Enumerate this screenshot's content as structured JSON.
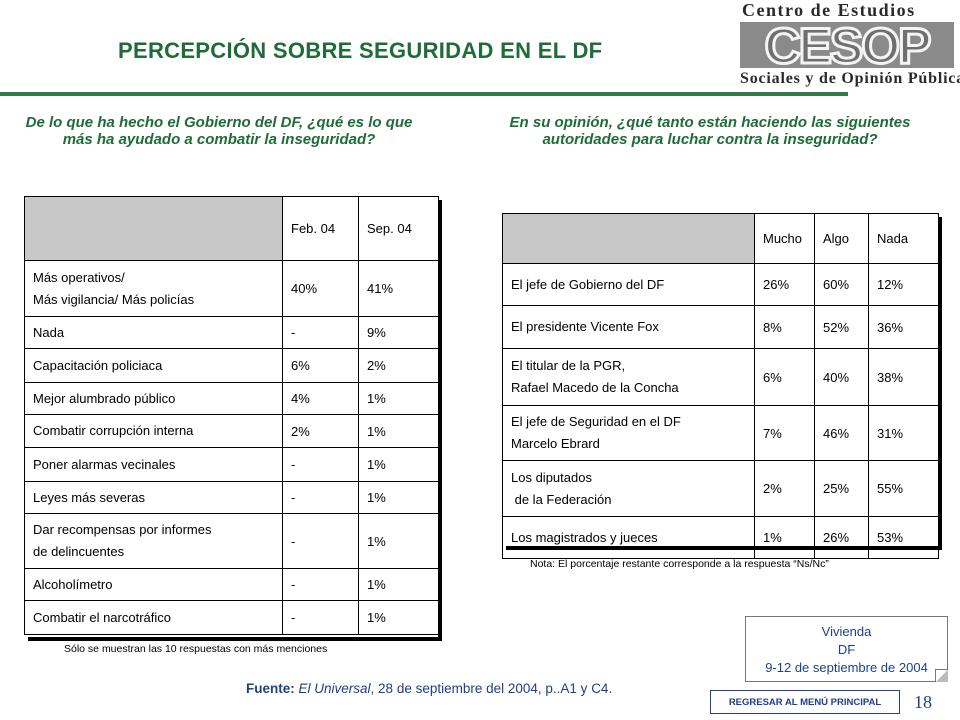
{
  "title": "PERCEPCIÓN SOBRE SEGURIDAD EN EL DF",
  "logo": {
    "top": "Centro de Estudios",
    "mark": "CESOP",
    "bottom": "Sociales y de Opinión Pública"
  },
  "left": {
    "question": "De lo que ha hecho el Gobierno del DF, ¿qué es lo que más ha ayudado a combatir la inseguridad?",
    "columns": [
      "Feb. 04",
      "Sep. 04"
    ],
    "rows": [
      {
        "label": [
          "Más operativos/",
          "Más vigilancia/ Más policías"
        ],
        "feb": "40%",
        "sep": "41%"
      },
      {
        "label": [
          "Nada"
        ],
        "feb": "-",
        "sep": "9%"
      },
      {
        "label": [
          "Capacitación policiaca"
        ],
        "feb": "6%",
        "sep": "2%"
      },
      {
        "label": [
          "Mejor alumbrado público"
        ],
        "feb": "4%",
        "sep": "1%"
      },
      {
        "label": [
          "Combatir corrupción interna"
        ],
        "feb": "2%",
        "sep": "1%"
      },
      {
        "label": [
          "Poner alarmas vecinales"
        ],
        "feb": "-",
        "sep": "1%"
      },
      {
        "label": [
          "Leyes más severas"
        ],
        "feb": "-",
        "sep": "1%"
      },
      {
        "label": [
          "Dar recompensas por informes",
          "de delincuentes"
        ],
        "feb": "-",
        "sep": "1%"
      },
      {
        "label": [
          "Alcoholímetro"
        ],
        "feb": "-",
        "sep": "1%"
      },
      {
        "label": [
          "Combatir el narcotráfico"
        ],
        "feb": "-",
        "sep": "1%"
      }
    ],
    "note": "Sólo se muestran las 10 respuestas con más menciones"
  },
  "right": {
    "question": "En su opinión, ¿qué tanto están haciendo las siguientes autoridades para luchar contra la inseguridad?",
    "columns": [
      "Mucho",
      "Algo",
      "Nada"
    ],
    "rows": [
      {
        "label": [
          "El jefe de Gobierno del DF"
        ],
        "values": [
          "26%",
          "60%",
          "12%"
        ]
      },
      {
        "label": [
          "El presidente Vicente Fox"
        ],
        "values": [
          "8%",
          "52%",
          "36%"
        ]
      },
      {
        "label": [
          "El titular de la PGR,",
          "Rafael Macedo de la Concha"
        ],
        "values": [
          "6%",
          "40%",
          "38%"
        ]
      },
      {
        "label": [
          "El jefe de Seguridad en el DF",
          "Marcelo Ebrard"
        ],
        "values": [
          "7%",
          "46%",
          "31%"
        ]
      },
      {
        "label": [
          "Los diputados",
          " de la Federación"
        ],
        "values": [
          "2%",
          "25%",
          "55%"
        ]
      },
      {
        "label": [
          "Los magistrados y jueces"
        ],
        "values": [
          "1%",
          "26%",
          "53%"
        ]
      }
    ],
    "note": "Nota: El porcentaje restante corresponde a la respuesta “Ns/Nc”"
  },
  "source": {
    "label": "Fuente:",
    "publication": "El Universal",
    "rest": ", 28  de septiembre del 2004, p..A1 y C4."
  },
  "callout": [
    "Vivienda",
    "DF",
    "9-12 de septiembre de 2004"
  ],
  "back_button": "REGRESAR AL MENÚ PRINCIPAL",
  "page_number": "18",
  "colors": {
    "title": "#1f6b3a",
    "link": "#1f3f8a",
    "header_fill": "#c8c8c8"
  }
}
